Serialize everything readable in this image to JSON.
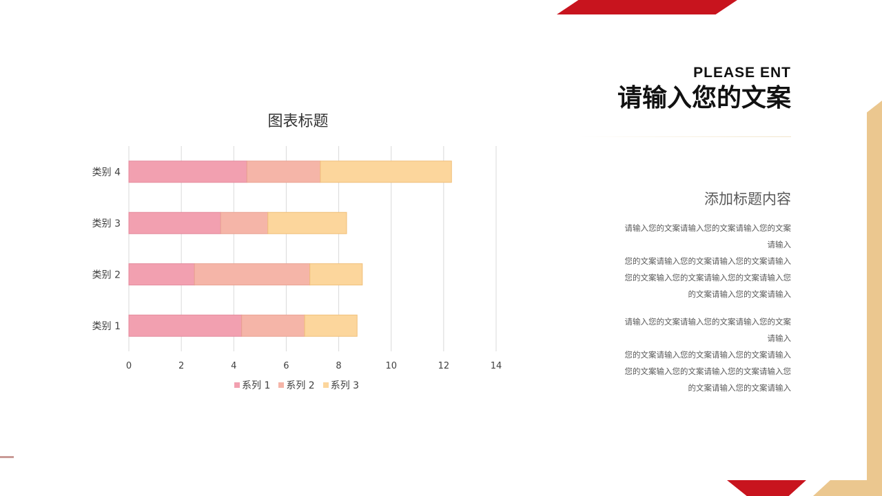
{
  "header": {
    "subtitle_en": "PLEASE ENT",
    "title": "请输入您的文案"
  },
  "content": {
    "section_title": "添加标题内容",
    "paragraphs": [
      [
        "请输入您的文案请输入您的文案请输入您的文案",
        "请输入",
        "您的文案请输入您的文案请输入您的文案请输入",
        "您的文案输入您的文案请输入您的文案请输入您",
        "的文案请输入您的文案请输入"
      ],
      [
        "请输入您的文案请输入您的文案请输入您的文案",
        "请输入",
        "您的文案请输入您的文案请输入您的文案请输入",
        "您的文案输入您的文案请输入您的文案请输入您",
        "的文案请输入您的文案请输入"
      ]
    ]
  },
  "colors": {
    "accent_red": "#c8141e",
    "accent_gold": "#ebc78f",
    "series1": "#f2a0b0",
    "series2": "#f5b5a8",
    "series3": "#fcd69c"
  },
  "chart_data": {
    "type": "bar",
    "orientation": "horizontal",
    "stacked": true,
    "title": "图表标题",
    "categories": [
      "类别 1",
      "类别 2",
      "类别 3",
      "类别 4"
    ],
    "series": [
      {
        "name": "系列 1",
        "values": [
          4.3,
          2.5,
          3.5,
          4.5
        ]
      },
      {
        "name": "系列 2",
        "values": [
          2.4,
          4.4,
          1.8,
          2.8
        ]
      },
      {
        "name": "系列 3",
        "values": [
          2.0,
          2.0,
          3.0,
          5.0
        ]
      }
    ],
    "xlim": [
      0,
      14
    ],
    "xticks": [
      "0",
      "2",
      "4",
      "6",
      "8",
      "10",
      "12",
      "14"
    ],
    "grid": true,
    "legend": "bottom"
  }
}
